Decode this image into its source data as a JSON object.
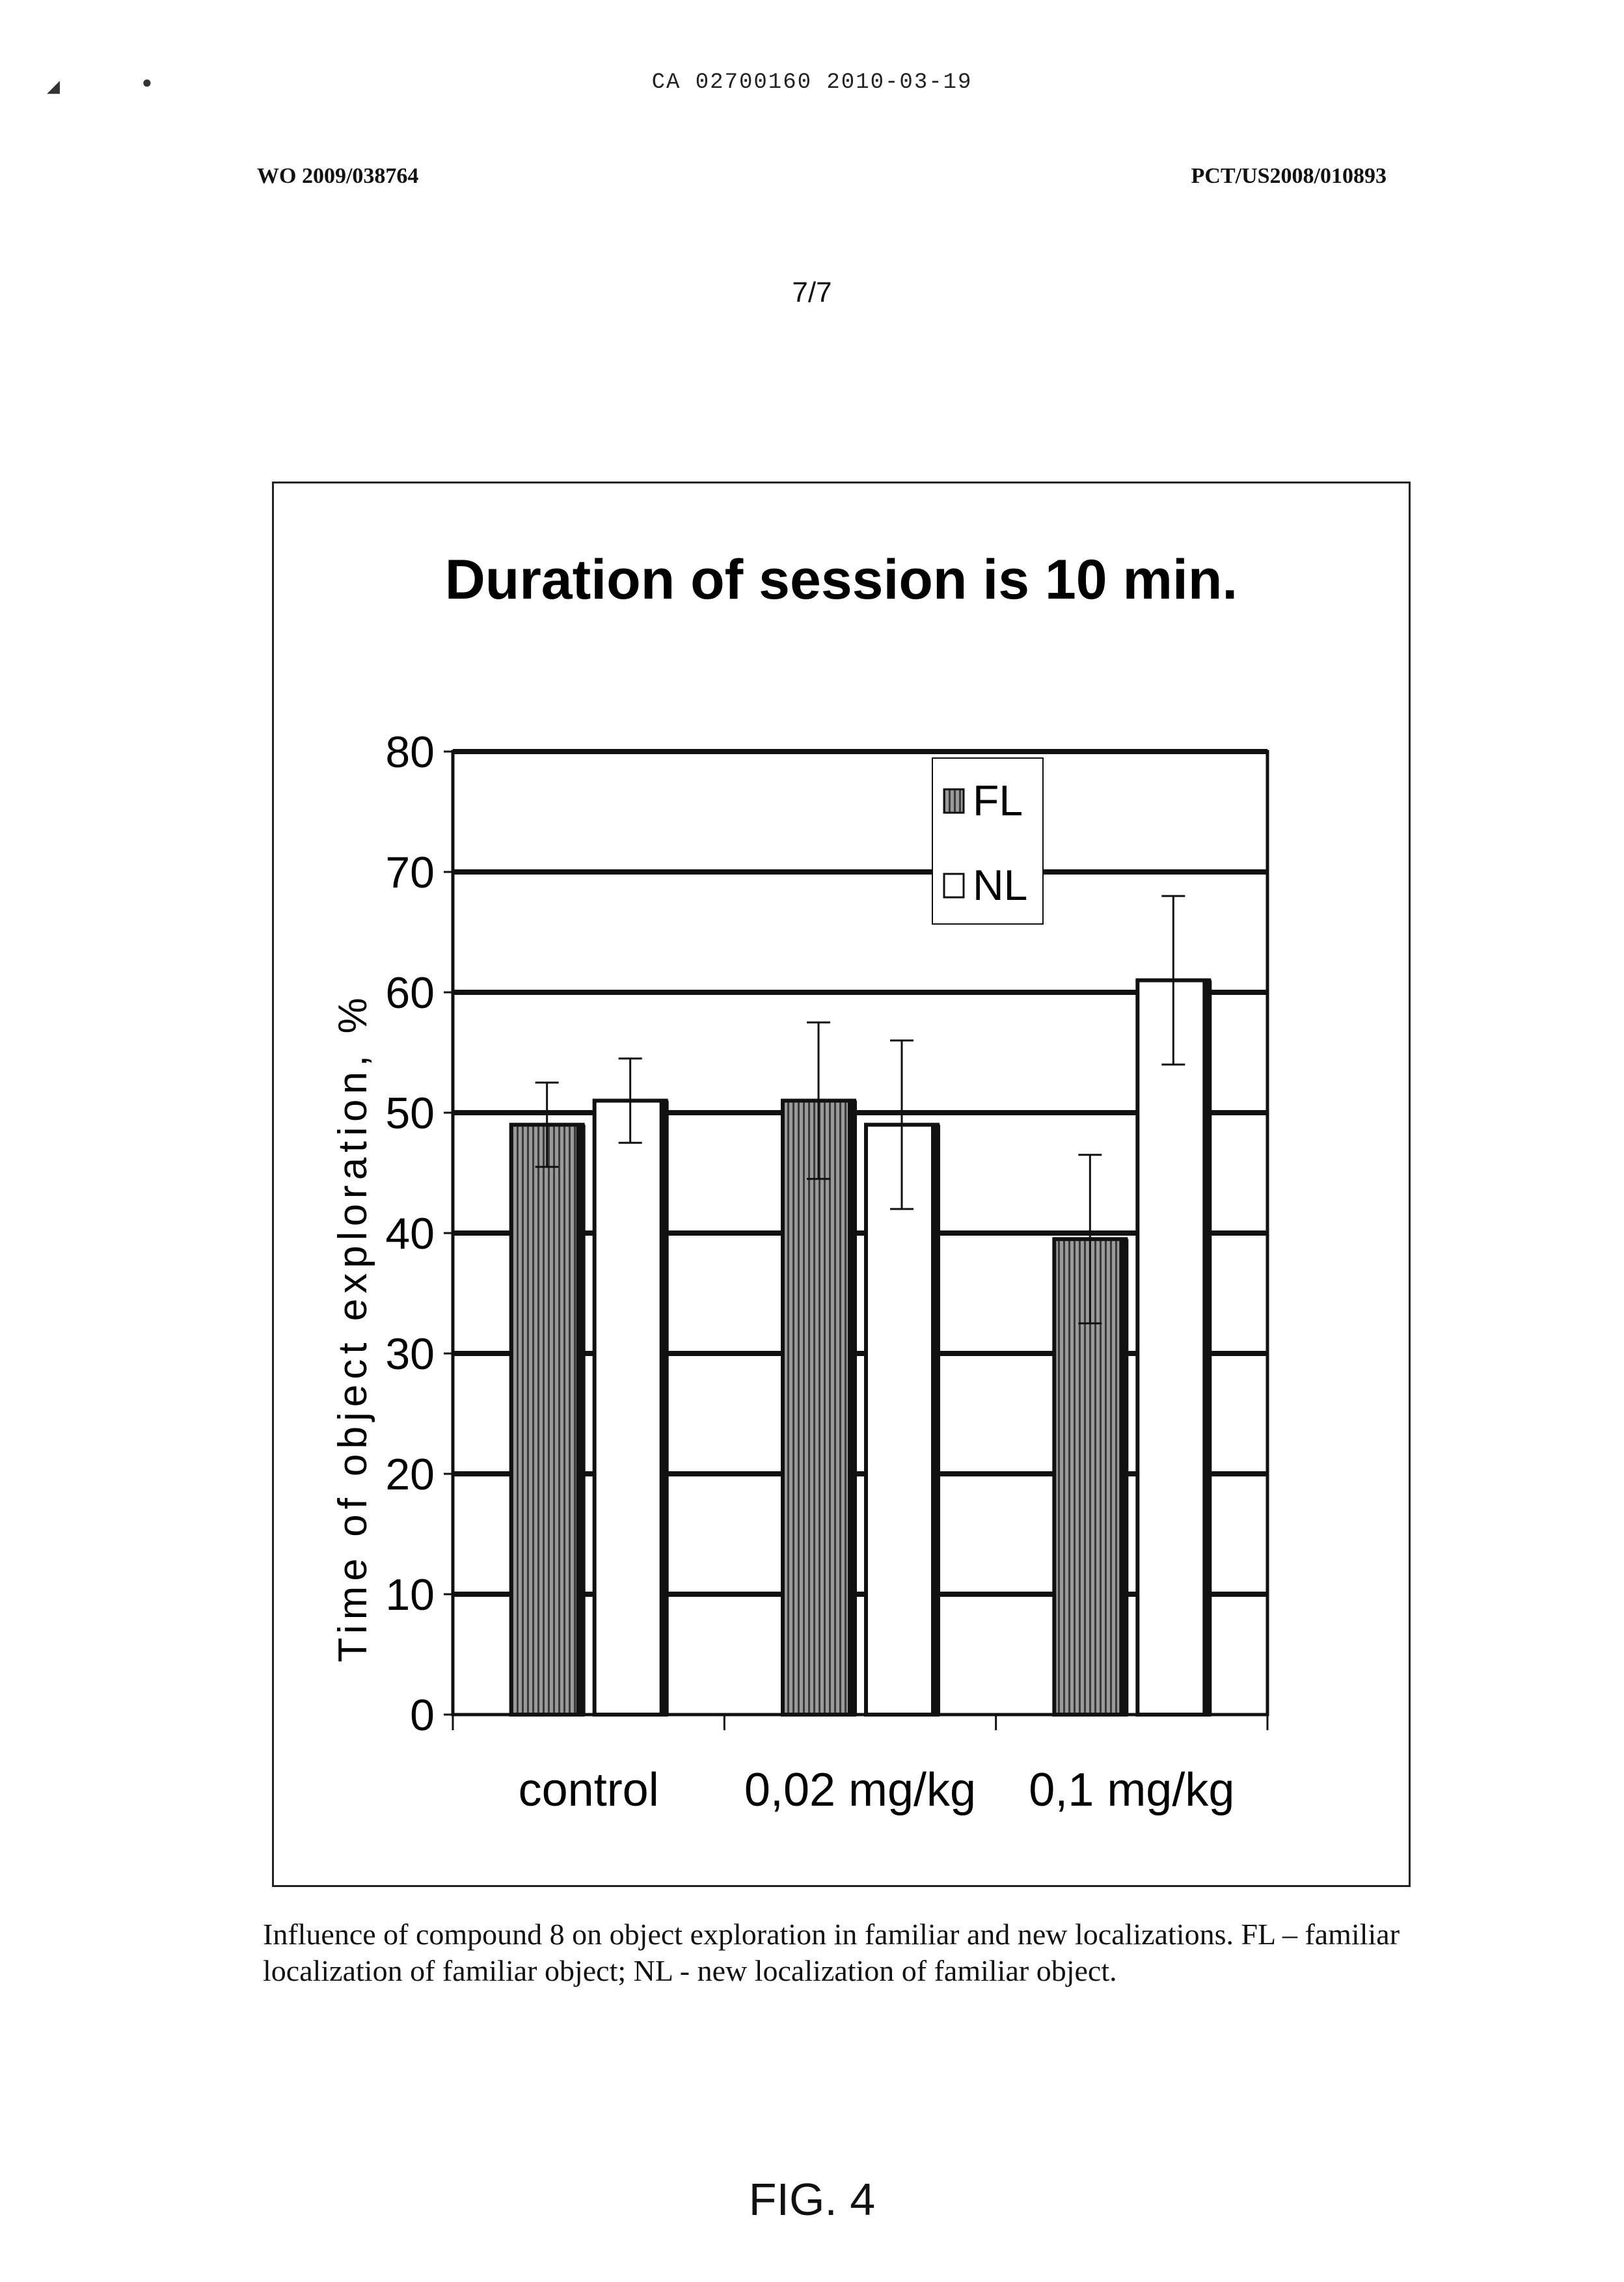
{
  "header": {
    "ca_number": "CA 02700160 2010-03-19",
    "wo_number": "WO 2009/038764",
    "pct_number": "PCT/US2008/010893",
    "page": "7/7"
  },
  "chart_data": {
    "type": "bar",
    "title": "Duration of session is 10 min.",
    "xlabel": "",
    "ylabel": "Time of object exploration, %",
    "ylim": [
      0,
      80
    ],
    "yticks": [
      0,
      10,
      20,
      30,
      40,
      50,
      60,
      70,
      80
    ],
    "grid": true,
    "legend_position": "top-right",
    "categories": [
      "control",
      "0,02 mg/kg",
      "0,1 mg/kg"
    ],
    "series": [
      {
        "name": "FL",
        "values": [
          49,
          51,
          39.5
        ],
        "errors": [
          3.5,
          6.5,
          7
        ],
        "color": "#666666"
      },
      {
        "name": "NL",
        "values": [
          51,
          49,
          61
        ],
        "errors": [
          3.5,
          7,
          7
        ],
        "color": "#ffffff"
      }
    ]
  },
  "caption": "Influence of compound 8 on object exploration in familiar and new localizations.  FL – familiar localization of familiar object; NL - new localization of familiar object.",
  "figure_label": "FIG. 4"
}
